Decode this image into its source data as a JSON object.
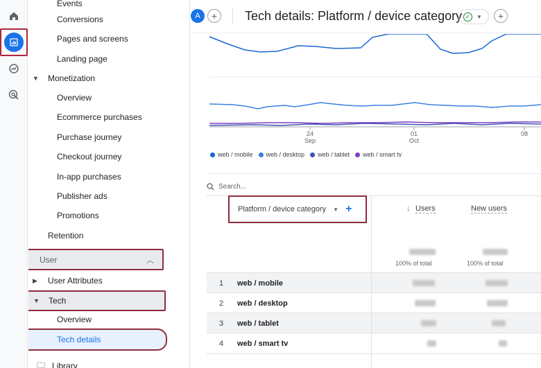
{
  "nav": {
    "events_label": "Events",
    "conversions_label": "Conversions",
    "pages_label": "Pages and screens",
    "landing_label": "Landing page",
    "monetization_label": "Monetization",
    "overview_label": "Overview",
    "ecommerce_label": "Ecommerce purchases",
    "purchase_journey_label": "Purchase journey",
    "checkout_journey_label": "Checkout journey",
    "inapp_label": "In-app purchases",
    "publisher_ads_label": "Publisher ads",
    "promotions_label": "Promotions",
    "retention_label": "Retention",
    "user_section_label": "User",
    "user_attributes_label": "User Attributes",
    "tech_label": "Tech",
    "tech_overview_label": "Overview",
    "tech_details_label": "Tech details",
    "library_label": "Library"
  },
  "header": {
    "avatar_letter": "A",
    "title": "Tech details: Platform / device category"
  },
  "chart_data": {
    "type": "line",
    "x_ticks": [
      {
        "day": "24",
        "month": "Sep"
      },
      {
        "day": "01",
        "month": "Oct"
      },
      {
        "day": "08",
        "month": ""
      }
    ],
    "series": [
      {
        "name": "web / mobile",
        "color": "#1967d2"
      },
      {
        "name": "web / desktop",
        "color": "#3a7fe0"
      },
      {
        "name": "web / tablet",
        "color": "#3f51b5"
      },
      {
        "name": "web / smart tv",
        "color": "#7b3fc4"
      }
    ]
  },
  "table": {
    "search_placeholder": "Search...",
    "dimension_label": "Platform / device category",
    "users_header": "Users",
    "new_users_header": "New users",
    "total_label_users": "100% of total",
    "total_label_new": "100% of total",
    "rows": [
      {
        "index": "1",
        "name": "web / mobile"
      },
      {
        "index": "2",
        "name": "web / desktop"
      },
      {
        "index": "3",
        "name": "web / tablet"
      },
      {
        "index": "4",
        "name": "web / smart tv"
      }
    ]
  }
}
